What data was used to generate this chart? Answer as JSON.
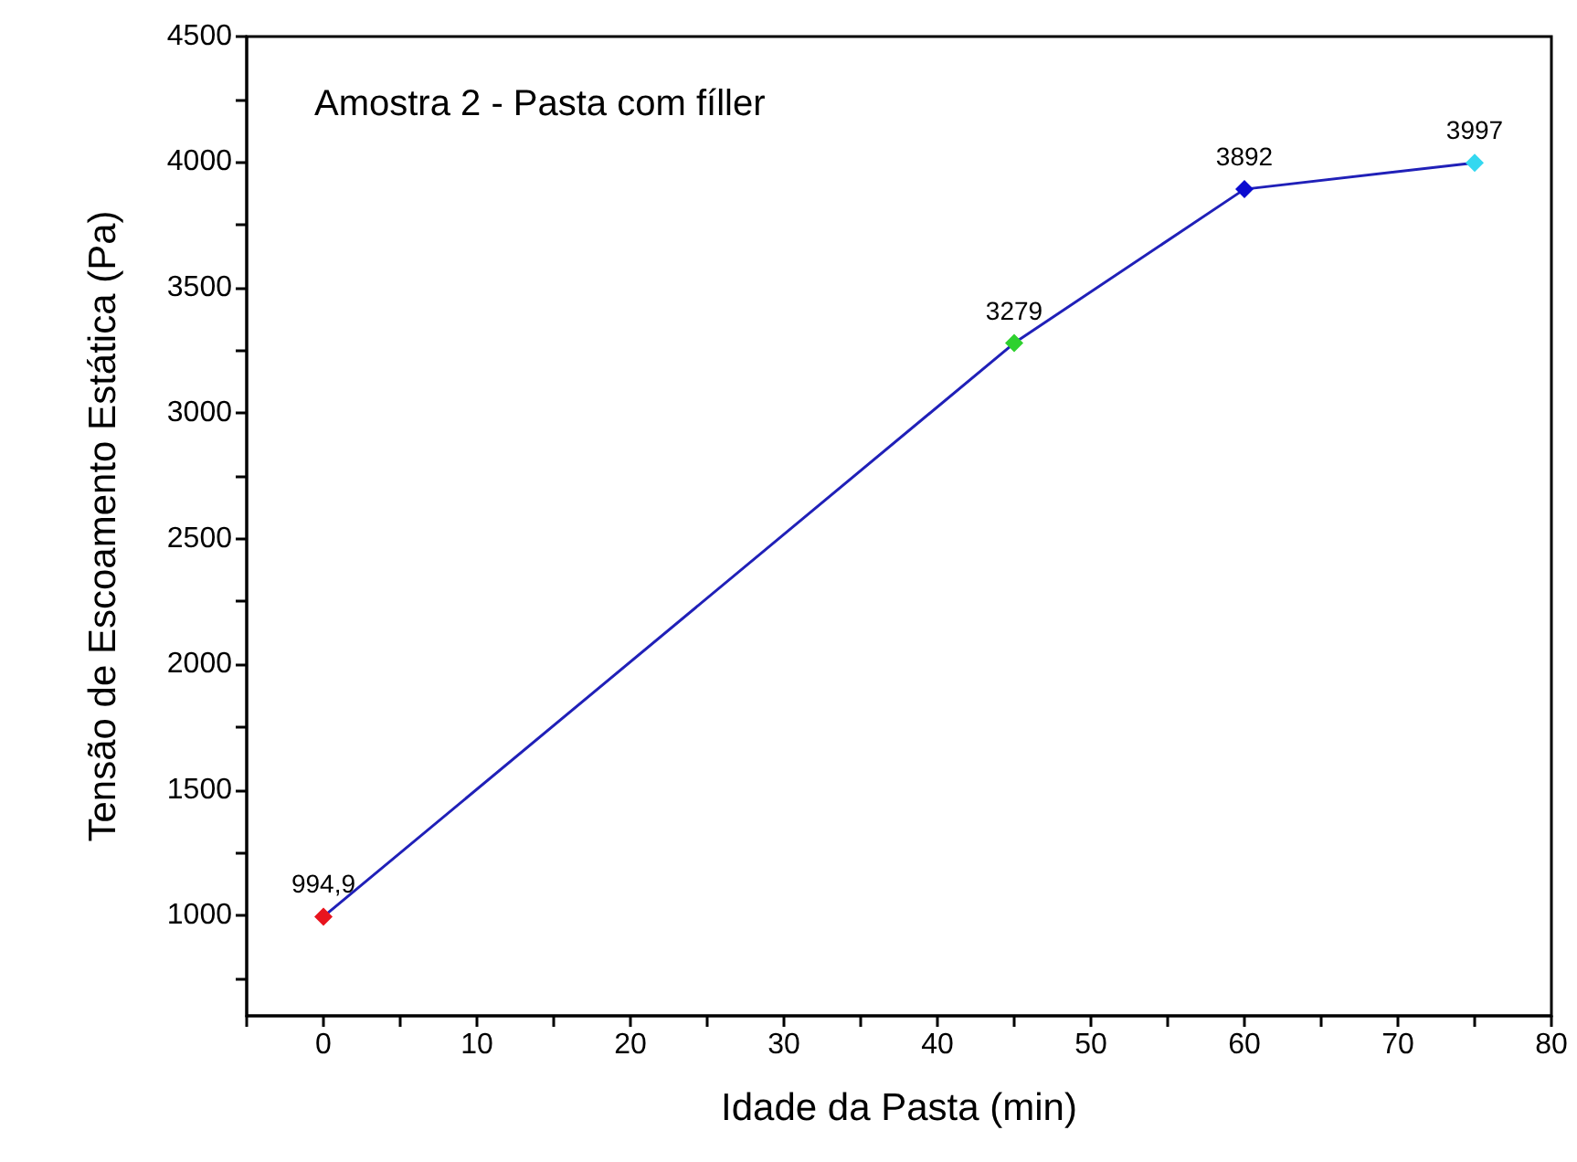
{
  "chart_data": {
    "type": "line",
    "title": "Amostra 2 - Pasta com fíller",
    "xlabel": "Idade da Pasta (min)",
    "ylabel": "Tensão de Escoamento Estática (Pa)",
    "x": [
      0,
      45,
      60,
      75
    ],
    "series": [
      {
        "color": "#2020b8",
        "colors": [
          "#e8141e",
          "#2ed12e",
          "#0a0ad0",
          "#33d8f0"
        ],
        "values": [
          994.9,
          3279,
          3892,
          3997
        ],
        "value_labels": [
          "994,9",
          "3279",
          "3892",
          "3997"
        ]
      }
    ],
    "xlim": [
      -5,
      80
    ],
    "xticks": [
      {
        "value": -5,
        "label": null
      },
      0,
      {
        "value": 5,
        "label": null
      },
      10,
      {
        "value": 15,
        "label": null
      },
      20,
      {
        "value": 25,
        "label": null
      },
      30,
      {
        "value": 35,
        "label": null
      },
      40,
      {
        "value": 45,
        "label": null
      },
      50,
      {
        "value": 55,
        "label": null
      },
      60,
      {
        "value": 65,
        "label": null
      },
      70,
      {
        "value": 75,
        "label": null
      },
      80
    ],
    "ylim": [
      600,
      4500
    ],
    "yticks": [
      {
        "value": 750,
        "label": null
      },
      1000,
      {
        "value": 1250,
        "label": null
      },
      1500,
      {
        "value": 1750,
        "label": null
      },
      2000,
      {
        "value": 2250,
        "label": null
      },
      2500,
      {
        "value": 2750,
        "label": null
      },
      3000,
      {
        "value": 3250,
        "label": null
      },
      3500,
      {
        "value": 3750,
        "label": null
      },
      4000,
      {
        "value": 4250,
        "label": null
      },
      4500
    ],
    "marker": "diamond",
    "line_style": "solid"
  }
}
